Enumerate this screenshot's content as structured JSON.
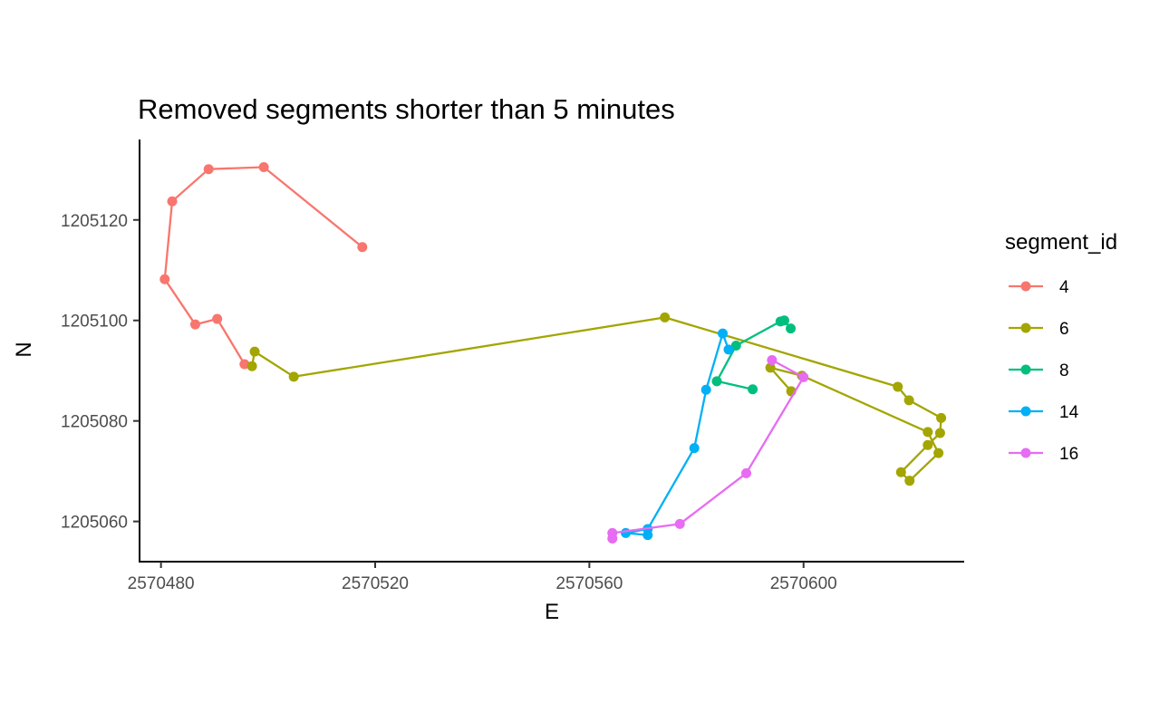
{
  "chart_data": {
    "type": "line",
    "title": "Removed segments shorter than 5 minutes",
    "xlabel": "E",
    "ylabel": "N",
    "xlim": [
      2570476,
      2570630
    ],
    "ylim": [
      1205052,
      1205136
    ],
    "x_ticks": [
      2570480,
      2570520,
      2570560,
      2570600
    ],
    "x_tick_labels": [
      "2570480",
      "2570520",
      "2570560",
      "2570600"
    ],
    "y_ticks": [
      1205060,
      1205080,
      1205100,
      1205120
    ],
    "y_tick_labels": [
      "1205060",
      "1205080",
      "1205100",
      "1205120"
    ],
    "grid": false,
    "legend": {
      "title": "segment_id",
      "position": "right"
    },
    "series": [
      {
        "name": "4",
        "color": "#F8766D",
        "x": [
          2570517.6,
          2570499.2,
          2570488.9,
          2570482.1,
          2570480.7,
          2570486.4,
          2570490.5,
          2570495.6
        ],
        "y": [
          1205114.6,
          1205130.5,
          1205130.1,
          1205123.7,
          1205108.2,
          1205099.2,
          1205100.3,
          1205091.3
        ]
      },
      {
        "name": "6",
        "color": "#A3A500",
        "x": [
          2570497.0,
          2570497.5,
          2570504.8,
          2570574.1,
          2570617.6,
          2570619.7,
          2570625.7,
          2570625.5,
          2570623.2,
          2570618.2,
          2570619.8,
          2570625.2,
          2570623.2,
          2570599.7,
          2570593.8,
          2570597.7
        ],
        "y": [
          1205090.9,
          1205093.8,
          1205088.8,
          1205100.6,
          1205086.8,
          1205084.1,
          1205080.6,
          1205077.6,
          1205075.2,
          1205069.8,
          1205068.1,
          1205073.6,
          1205077.8,
          1205089.0,
          1205090.6,
          1205085.9
        ]
      },
      {
        "name": "8",
        "color": "#00BF7D",
        "x": [
          2570590.5,
          2570583.8,
          2570587.4,
          2570595.7,
          2570596.4,
          2570597.6
        ],
        "y": [
          1205086.3,
          1205087.9,
          1205095.0,
          1205099.8,
          1205100.0,
          1205098.4
        ]
      },
      {
        "name": "14",
        "color": "#00B0F6",
        "x": [
          2570570.9,
          2570566.8,
          2570570.9,
          2570579.6,
          2570581.8,
          2570584.9,
          2570586.0
        ],
        "y": [
          1205057.3,
          1205057.7,
          1205058.5,
          1205074.6,
          1205086.2,
          1205097.4,
          1205094.2
        ]
      },
      {
        "name": "16",
        "color": "#E76BF3",
        "x": [
          2570564.3,
          2570564.3,
          2570576.9,
          2570589.3,
          2570600.0,
          2570594.1
        ],
        "y": [
          1205056.6,
          1205057.7,
          1205059.5,
          1205069.6,
          1205088.7,
          1205092.1
        ]
      }
    ]
  }
}
